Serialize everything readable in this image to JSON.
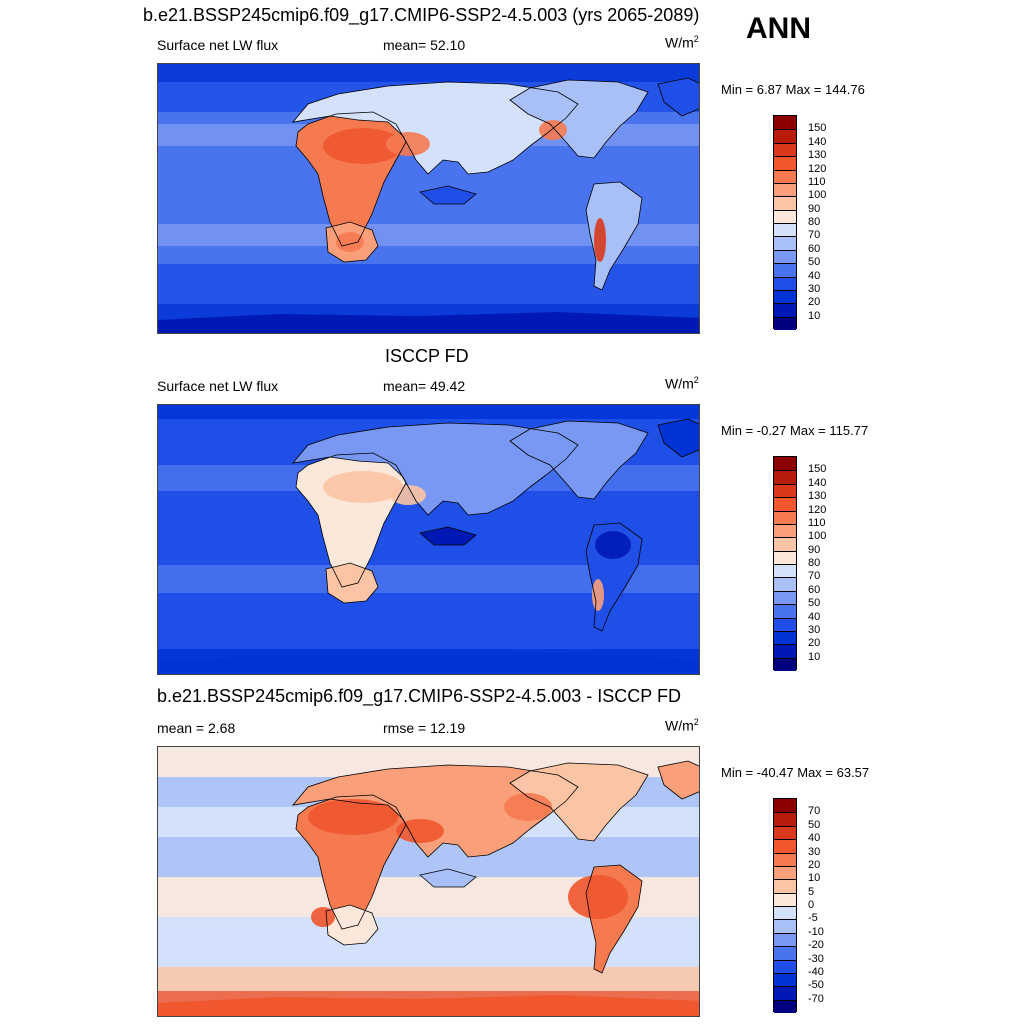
{
  "season": "ANN",
  "colors": {
    "scale_abs": [
      "#000080",
      "#0019b5",
      "#0033d6",
      "#1f4fe6",
      "#4a73ee",
      "#7898f3",
      "#a8bff7",
      "#d3e1fb",
      "#fbe8da",
      "#fbc4a4",
      "#f99f79",
      "#f67a50",
      "#f0572f",
      "#d9381a",
      "#b71c0a",
      "#8c0000"
    ],
    "scale_diff": [
      "#000080",
      "#0019b5",
      "#0033d6",
      "#1f4fe6",
      "#4a73ee",
      "#7898f3",
      "#a8bff7",
      "#d3e1fb",
      "#fbe8da",
      "#fbc4a4",
      "#f99f79",
      "#f67a50",
      "#f0572f",
      "#d9381a",
      "#b71c0a",
      "#8c0000"
    ],
    "coastline": "#000000"
  },
  "panels": [
    {
      "title": "b.e21.BSSP245cmip6.f09_g17.CMIP6-SSP2-4.5.003 (yrs 2065-2089)",
      "left_label": "Surface net LW flux",
      "center_label": "mean=  52.10",
      "unit": "W/m",
      "unit_sup": "2",
      "minmax": "Min =   6.87 Max = 144.76",
      "ticks": [
        "150",
        "140",
        "130",
        "120",
        "110",
        "100",
        "90",
        "80",
        "70",
        "60",
        "50",
        "40",
        "30",
        "20",
        "10"
      ]
    },
    {
      "title": "ISCCP FD",
      "left_label": "Surface net LW flux",
      "center_label": "mean=  49.42",
      "unit": "W/m",
      "unit_sup": "2",
      "minmax": "Min =  -0.27 Max = 115.77",
      "ticks": [
        "150",
        "140",
        "130",
        "120",
        "110",
        "100",
        "90",
        "80",
        "70",
        "60",
        "50",
        "40",
        "30",
        "20",
        "10"
      ]
    },
    {
      "title": "b.e21.BSSP245cmip6.f09_g17.CMIP6-SSP2-4.5.003 - ISCCP FD",
      "left_label": "mean =   2.68",
      "center_label": "rmse =  12.19",
      "unit": "W/m",
      "unit_sup": "2",
      "minmax": "Min = -40.47 Max =  63.57",
      "ticks": [
        "70",
        "50",
        "40",
        "30",
        "20",
        "10",
        "5",
        "0",
        "-5",
        "-10",
        "-20",
        "-30",
        "-40",
        "-50",
        "-70"
      ]
    }
  ]
}
